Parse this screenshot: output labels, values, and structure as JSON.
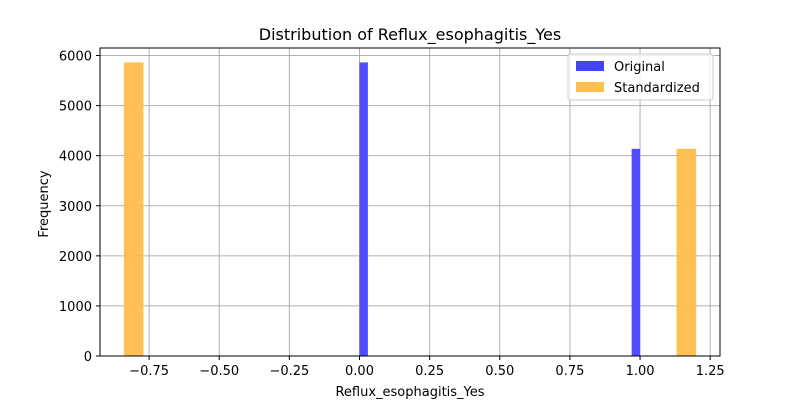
{
  "chart_data": {
    "type": "bar",
    "title": "Distribution of Reflux_esophagitis_Yes",
    "xlabel": "Reflux_esophagitis_Yes",
    "ylabel": "Frequency",
    "xlim": [
      -0.925,
      1.285
    ],
    "ylim": [
      0,
      6150
    ],
    "xticks": [
      -0.75,
      -0.5,
      -0.25,
      0.0,
      0.25,
      0.5,
      0.75,
      1.0,
      1.25
    ],
    "xtick_labels": [
      "−0.75",
      "−0.50",
      "−0.25",
      "0.00",
      "0.25",
      "0.50",
      "0.75",
      "1.00",
      "1.25"
    ],
    "yticks": [
      0,
      1000,
      2000,
      3000,
      4000,
      5000,
      6000
    ],
    "ytick_labels": [
      "0",
      "1000",
      "2000",
      "3000",
      "4000",
      "5000",
      "6000"
    ],
    "grid": true,
    "legend_position": "top-right",
    "series": [
      {
        "name": "Original",
        "color": "#4444ff",
        "bars": [
          {
            "x0": 0.0,
            "x1": 0.03,
            "value": 5863
          },
          {
            "x0": 0.97,
            "x1": 1.0,
            "value": 4137
          }
        ]
      },
      {
        "name": "Standardized",
        "color": "#ffbe4d",
        "bars": [
          {
            "x0": -0.84,
            "x1": -0.77,
            "value": 5863
          },
          {
            "x0": 1.13,
            "x1": 1.2,
            "value": 4137
          }
        ]
      }
    ]
  }
}
